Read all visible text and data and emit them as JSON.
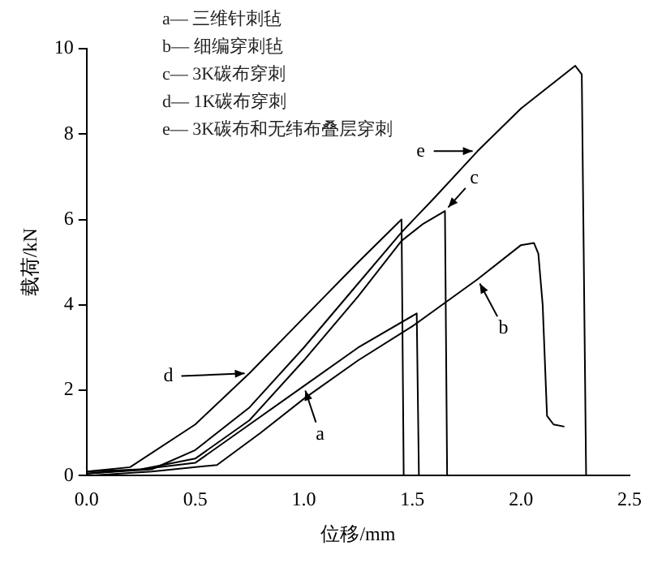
{
  "chart_data": {
    "type": "line",
    "xlabel": "位移/mm",
    "ylabel": "载荷/kN",
    "annotations": [
      "a— 三维针刺毡",
      "b— 细编穿刺毡",
      "c— 3K碳布穿刺",
      "d— 1K碳布穿刺",
      "e— 3K碳布和无纬布叠层穿刺"
    ],
    "xlim": [
      0,
      2.5
    ],
    "ylim": [
      0,
      10
    ],
    "xticks": [
      {
        "value": 0,
        "label": "0.0"
      },
      0.5,
      {
        "value": 1,
        "label": "1.0"
      },
      1.5,
      {
        "value": 2,
        "label": "2.0"
      },
      2.5
    ],
    "yticks": [
      0,
      2,
      4,
      6,
      8,
      10
    ],
    "grid": false,
    "legend": "bottom right",
    "marker": "none",
    "line_style": "solid",
    "series": [
      {
        "name": "a",
        "color": "#000000",
        "x": [
          0,
          0.25,
          0.5,
          0.75,
          1.0,
          1.25,
          1.52,
          1.53
        ],
        "values": [
          0.1,
          0.15,
          0.3,
          1.2,
          2.1,
          3.0,
          3.8,
          0
        ]
      },
      {
        "name": "b",
        "color": "#000000",
        "x": [
          0,
          0.3,
          0.6,
          0.8,
          1.0,
          1.25,
          1.5,
          1.8,
          2.0,
          2.06,
          2.08,
          2.1,
          2.12,
          2.15,
          2.2
        ],
        "values": [
          0,
          0.1,
          0.25,
          1.0,
          1.8,
          2.7,
          3.5,
          4.6,
          5.4,
          5.45,
          5.2,
          4.0,
          1.4,
          1.2,
          1.15
        ]
      },
      {
        "name": "c",
        "color": "#000000",
        "x": [
          0,
          0.25,
          0.5,
          0.75,
          1.0,
          1.25,
          1.45,
          1.55,
          1.65,
          1.66
        ],
        "values": [
          0.05,
          0.15,
          0.4,
          1.3,
          2.7,
          4.2,
          5.5,
          5.9,
          6.2,
          0
        ]
      },
      {
        "name": "d",
        "color": "#000000",
        "x": [
          0,
          0.2,
          0.5,
          0.75,
          1.0,
          1.25,
          1.45,
          1.46
        ],
        "values": [
          0.1,
          0.2,
          1.2,
          2.4,
          3.7,
          5.0,
          6.0,
          0
        ]
      },
      {
        "name": "e",
        "color": "#000000",
        "x": [
          0,
          0.3,
          0.5,
          0.75,
          1.0,
          1.25,
          1.45,
          1.6,
          1.8,
          2.0,
          2.25,
          2.28,
          2.3
        ],
        "values": [
          0.05,
          0.15,
          0.6,
          1.6,
          3.0,
          4.5,
          5.7,
          6.5,
          7.6,
          8.6,
          9.6,
          9.4,
          0
        ]
      }
    ]
  }
}
